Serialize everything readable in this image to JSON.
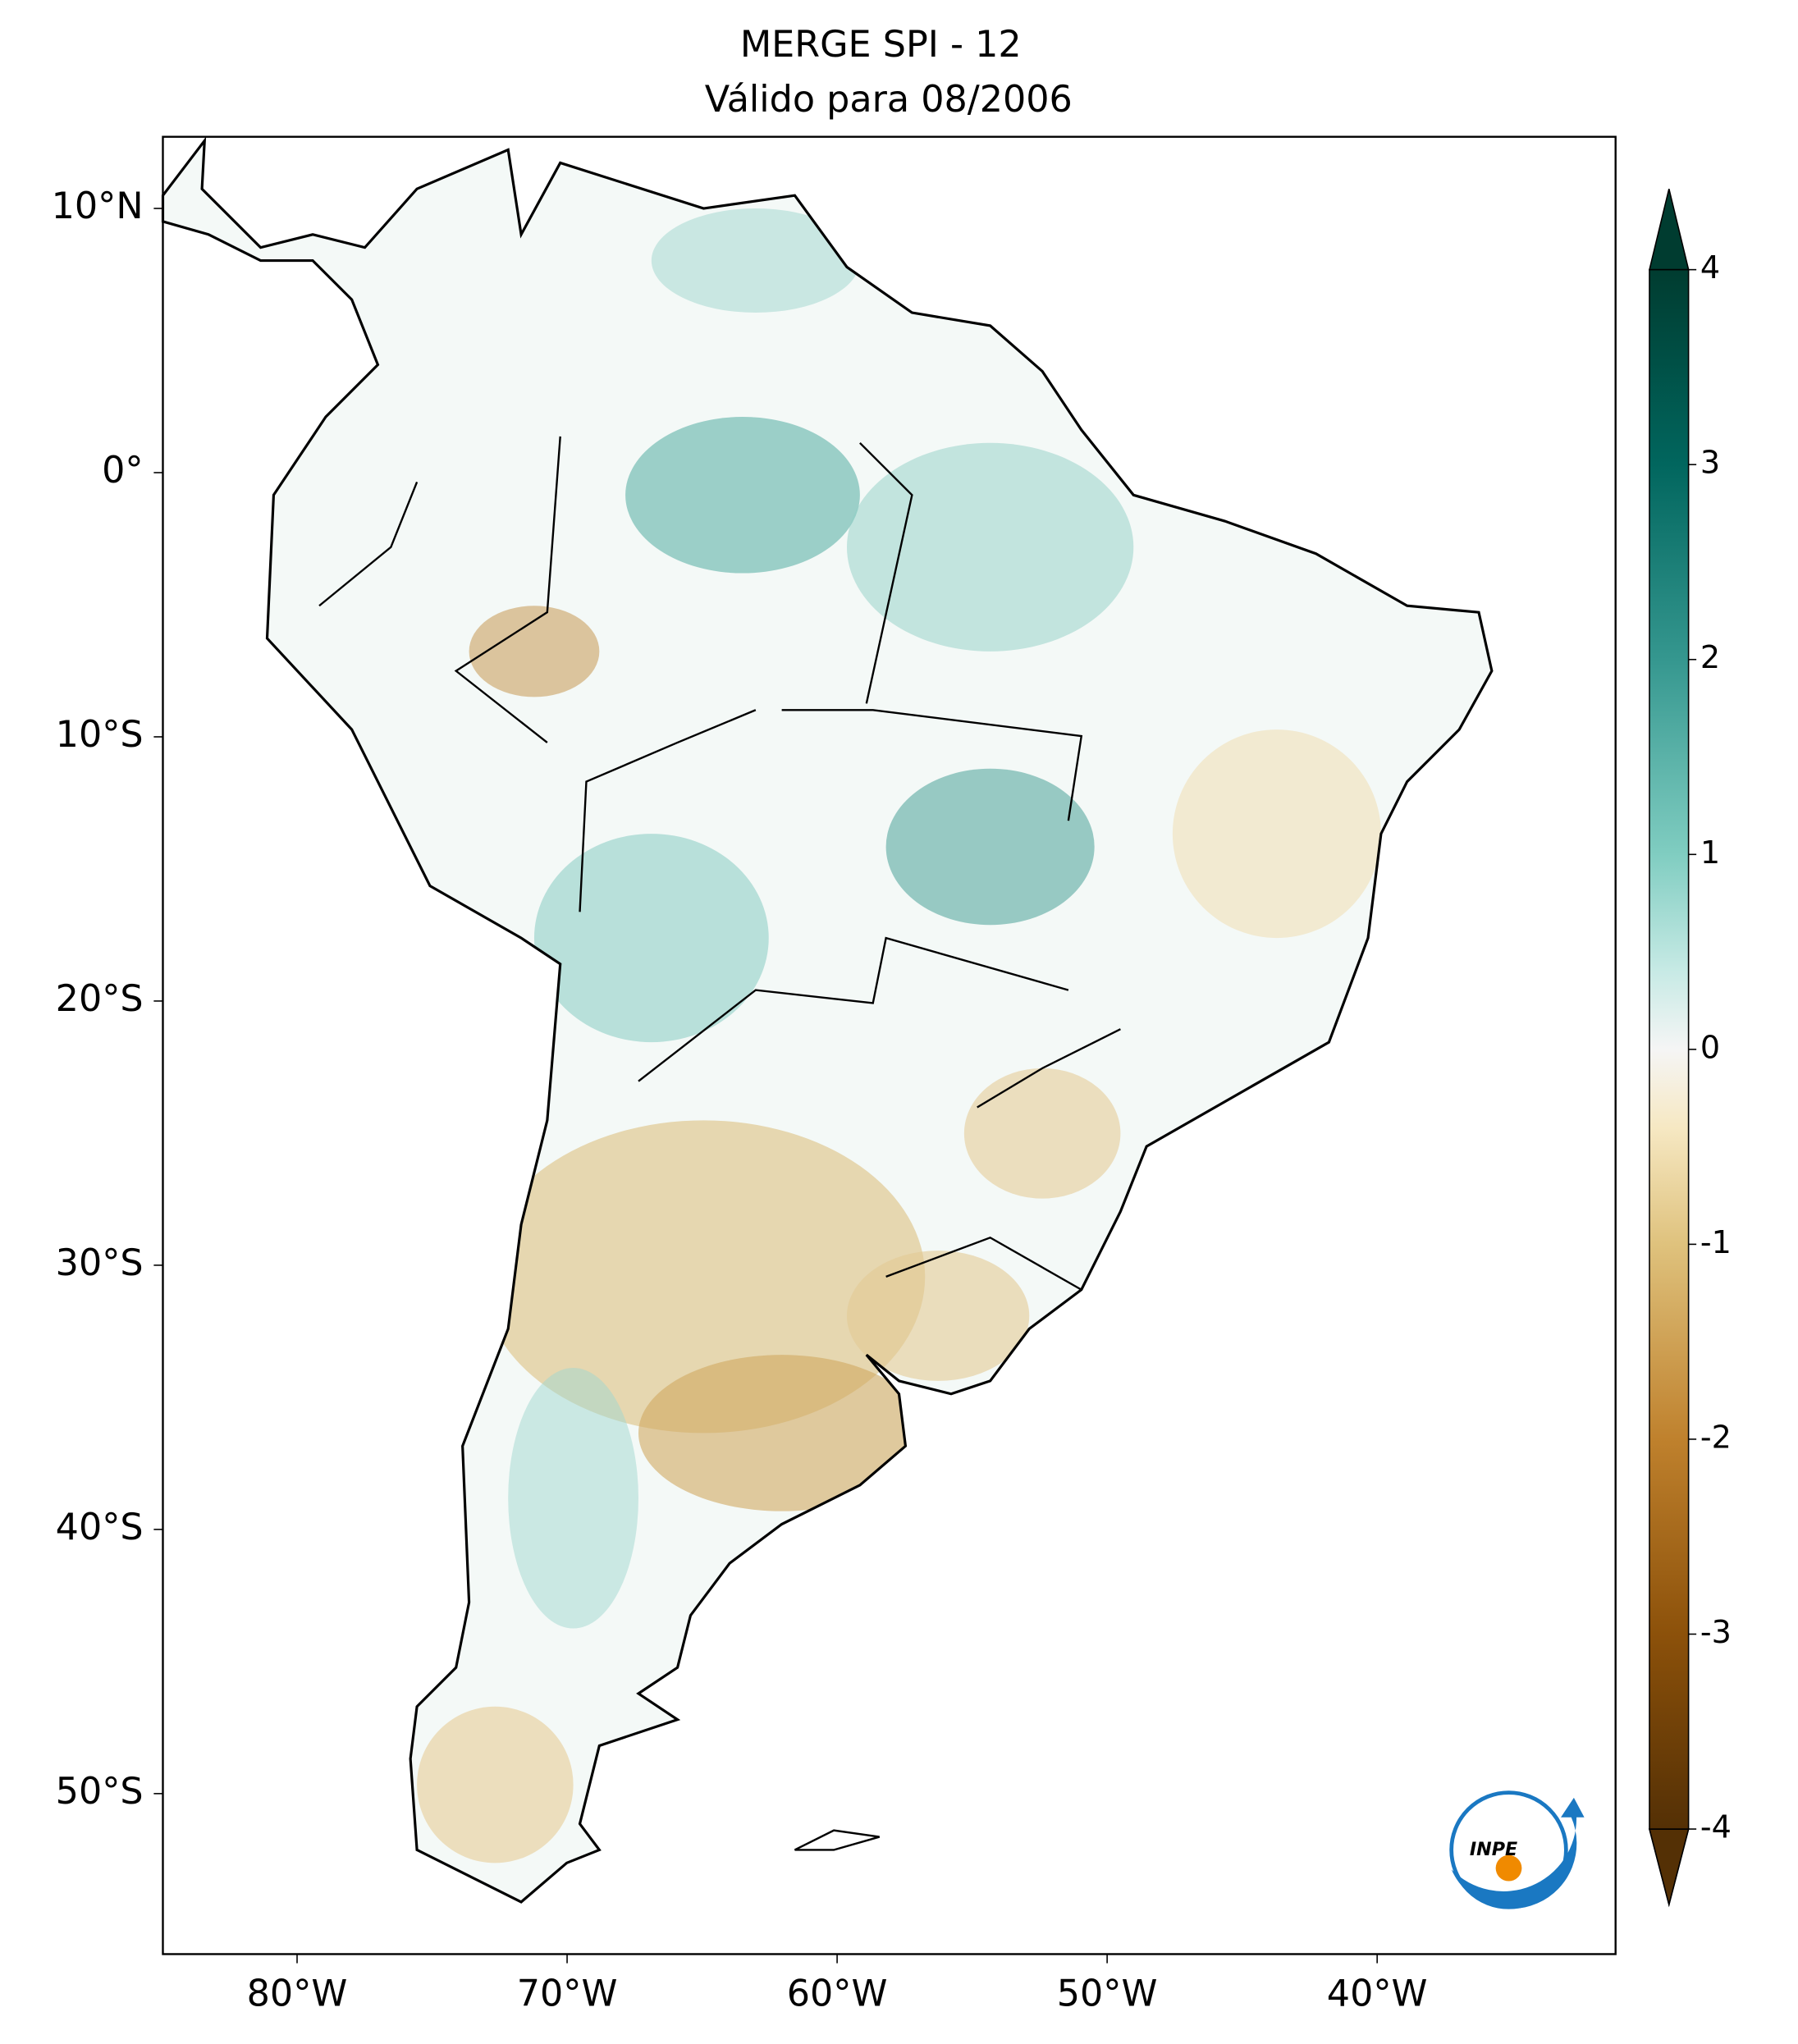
{
  "map": {
    "title": [
      "MERGE   SPI - 12",
      "Válido para 08/2006"
    ],
    "xticks": [
      {
        "value": -80,
        "label": "80°W"
      },
      {
        "value": -70,
        "label": "70°W"
      },
      {
        "value": -60,
        "label": "60°W"
      },
      {
        "value": -50,
        "label": "50°W"
      },
      {
        "value": -40,
        "label": "40°W"
      }
    ],
    "yticks": [
      {
        "value": 10,
        "label": "10°N"
      },
      {
        "value": 0,
        "label": "0°"
      },
      {
        "value": -10,
        "label": "10°S"
      },
      {
        "value": -20,
        "label": "20°S"
      },
      {
        "value": -30,
        "label": "30°S"
      },
      {
        "value": -40,
        "label": "40°S"
      },
      {
        "value": -50,
        "label": "50°S"
      }
    ],
    "colorbar": {
      "lim": [
        -4,
        4
      ],
      "ticks": [
        4,
        3,
        2,
        1,
        0,
        -1,
        -2,
        -3,
        -4
      ]
    },
    "logo": "INPE"
  }
}
